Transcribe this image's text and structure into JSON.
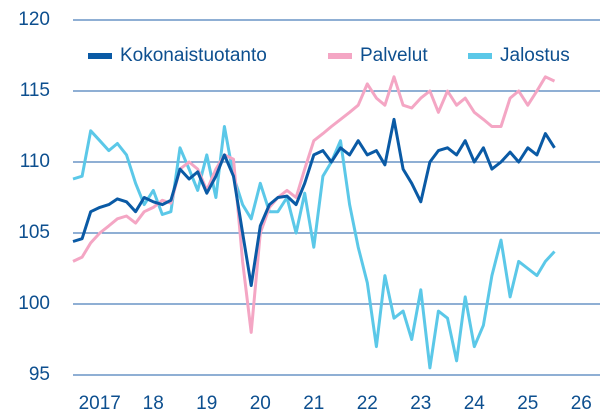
{
  "chart_data": {
    "type": "line",
    "x": [
      2017,
      2017.17,
      2017.33,
      2017.5,
      2017.67,
      2017.83,
      2018,
      2018.17,
      2018.33,
      2018.5,
      2018.67,
      2018.83,
      2019,
      2019.17,
      2019.33,
      2019.5,
      2019.67,
      2019.83,
      2020,
      2020.17,
      2020.33,
      2020.5,
      2020.67,
      2020.83,
      2021,
      2021.17,
      2021.33,
      2021.5,
      2021.67,
      2021.83,
      2022,
      2022.17,
      2022.33,
      2022.5,
      2022.67,
      2022.83,
      2023,
      2023.17,
      2023.33,
      2023.5,
      2023.67,
      2023.83,
      2024,
      2024.17,
      2024.33,
      2024.5,
      2024.67,
      2024.83,
      2025,
      2025.17,
      2025.33,
      2025.5,
      2025.67,
      2025.83,
      2026
    ],
    "series": [
      {
        "name": "Kokonaistuotanto",
        "color": "#0a5aa5",
        "values": [
          104.4,
          104.6,
          106.5,
          106.8,
          107,
          107.4,
          107.2,
          106.5,
          107.5,
          107.2,
          107,
          107.3,
          109.5,
          108.8,
          109.3,
          107.8,
          109,
          110.5,
          109,
          105,
          101.3,
          105.5,
          107,
          107.5,
          107.6,
          107,
          108.5,
          110.5,
          110.8,
          110,
          111,
          110.5,
          111.5,
          110.5,
          110.8,
          109.8,
          113,
          109.5,
          108.5,
          107.2,
          110,
          110.8,
          111,
          110.5,
          111.5,
          110,
          111,
          109.5,
          110,
          110.7,
          110,
          111,
          110.5,
          112,
          111
        ]
      },
      {
        "name": "Palvelut",
        "color": "#f4a6c4",
        "values": [
          103,
          103.3,
          104.3,
          105,
          105.5,
          106,
          106.2,
          105.7,
          106.5,
          106.8,
          107.3,
          107.1,
          109.5,
          110,
          109.5,
          108,
          109.5,
          110.5,
          110.2,
          103,
          98,
          105,
          106.8,
          107.5,
          108,
          107.5,
          109.5,
          111.5,
          112,
          112.5,
          113,
          113.5,
          114,
          115.5,
          114.5,
          114,
          116,
          114,
          113.8,
          114.5,
          115,
          113.5,
          115,
          114,
          114.5,
          113.5,
          113,
          112.5,
          112.5,
          114.5,
          115,
          114,
          115,
          116,
          115.7
        ]
      },
      {
        "name": "Jalostus",
        "color": "#5bc8e8",
        "values": [
          108.8,
          109,
          112.2,
          111.5,
          110.8,
          111.3,
          110.5,
          108.5,
          107,
          108,
          106.3,
          106.5,
          111,
          109.5,
          108,
          110.5,
          107.5,
          112.5,
          109,
          107,
          106,
          108.5,
          106.5,
          106.5,
          107.5,
          105,
          107.8,
          104,
          109,
          110,
          111.5,
          107,
          104,
          101.5,
          97,
          102,
          99,
          99.5,
          97.5,
          101,
          95.5,
          99.5,
          99,
          96,
          100.5,
          97,
          98.5,
          102,
          104.5,
          100.5,
          103,
          102.5,
          102,
          103,
          103.7
        ]
      }
    ],
    "xlim": [
      2017,
      2026.85
    ],
    "xticks": [
      {
        "value": 2017.5,
        "label": "2017"
      },
      {
        "value": 2018.5,
        "label": "18"
      },
      {
        "value": 2019.5,
        "label": "19"
      },
      {
        "value": 2020.5,
        "label": "20"
      },
      {
        "value": 2021.5,
        "label": "21"
      },
      {
        "value": 2022.5,
        "label": "22"
      },
      {
        "value": 2023.5,
        "label": "23"
      },
      {
        "value": 2024.5,
        "label": "24"
      },
      {
        "value": 2025.5,
        "label": "25"
      },
      {
        "value": 2026.5,
        "label": "26"
      }
    ],
    "ylim": [
      95,
      120
    ],
    "yticks": [
      95,
      100,
      105,
      110,
      115,
      120
    ],
    "grid": true,
    "legend": "top"
  }
}
